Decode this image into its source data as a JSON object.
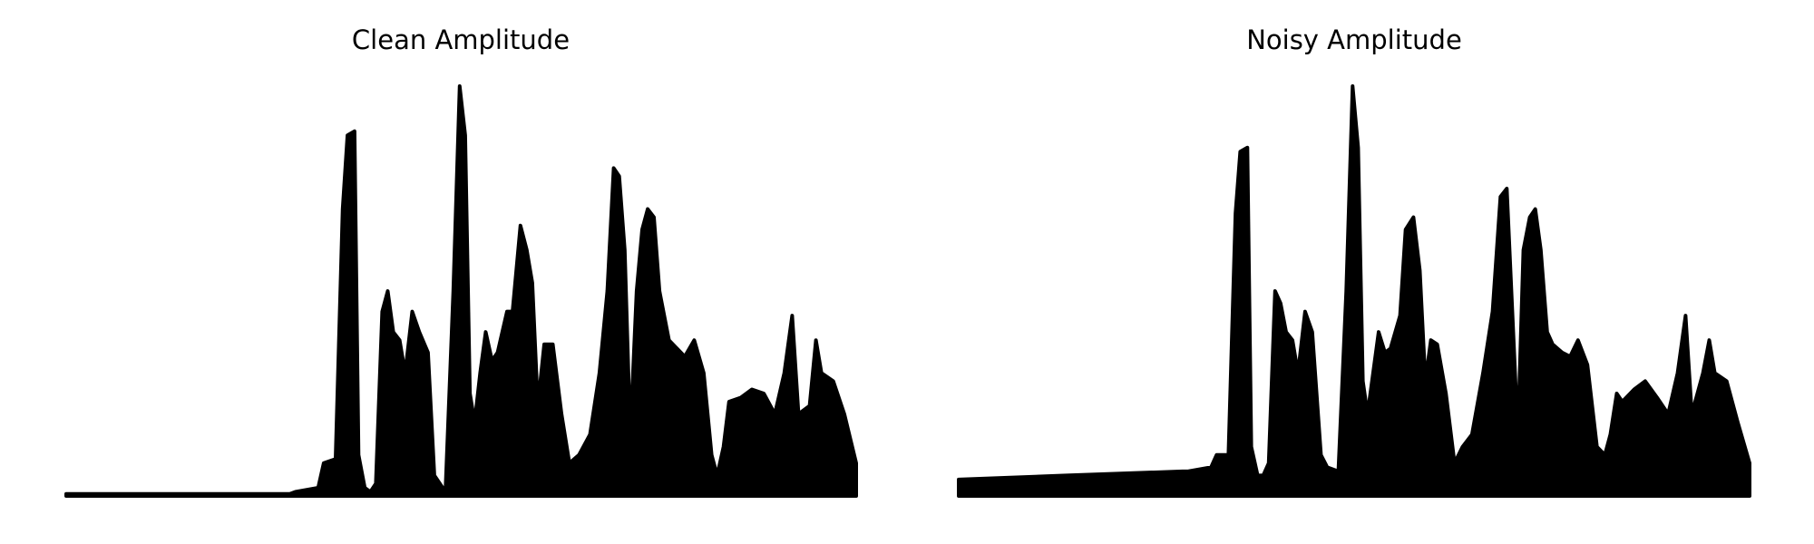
{
  "chart_data": [
    {
      "type": "area",
      "title": "Clean Amplitude",
      "color": "#000000",
      "x": [
        0,
        0.136,
        0.283,
        0.29,
        0.319,
        0.326,
        0.341,
        0.35,
        0.356,
        0.365,
        0.37,
        0.378,
        0.385,
        0.392,
        0.4,
        0.407,
        0.414,
        0.422,
        0.429,
        0.438,
        0.447,
        0.458,
        0.466,
        0.48,
        0.49,
        0.498,
        0.505,
        0.511,
        0.517,
        0.524,
        0.531,
        0.539,
        0.546,
        0.558,
        0.565,
        0.575,
        0.583,
        0.59,
        0.597,
        0.605,
        0.616,
        0.627,
        0.637,
        0.649,
        0.663,
        0.675,
        0.685,
        0.693,
        0.7,
        0.707,
        0.714,
        0.722,
        0.729,
        0.736,
        0.744,
        0.751,
        0.763,
        0.773,
        0.783,
        0.795,
        0.807,
        0.817,
        0.824,
        0.832,
        0.839,
        0.854,
        0.868,
        0.883,
        0.897,
        0.909,
        0.919,
        0.927,
        0.941,
        0.949,
        0.956,
        0.971,
        0.985,
        1
      ],
      "values": [
        0.005,
        0.005,
        0.005,
        0.01,
        0.02,
        0.08,
        0.09,
        0.7,
        0.88,
        0.89,
        0.1,
        0.02,
        0.01,
        0.03,
        0.45,
        0.5,
        0.4,
        0.38,
        0.3,
        0.45,
        0.4,
        0.35,
        0.05,
        0.01,
        0.5,
        1,
        0.88,
        0.25,
        0.18,
        0.3,
        0.4,
        0.33,
        0.35,
        0.45,
        0.45,
        0.66,
        0.6,
        0.52,
        0.22,
        0.37,
        0.37,
        0.2,
        0.08,
        0.1,
        0.15,
        0.3,
        0.5,
        0.8,
        0.78,
        0.6,
        0.15,
        0.5,
        0.65,
        0.7,
        0.68,
        0.5,
        0.38,
        0.36,
        0.34,
        0.38,
        0.3,
        0.1,
        0.05,
        0.12,
        0.23,
        0.24,
        0.26,
        0.25,
        0.2,
        0.3,
        0.44,
        0.2,
        0.22,
        0.38,
        0.3,
        0.28,
        0.2,
        0.08
      ]
    },
    {
      "type": "area",
      "title": "Noisy Amplitude",
      "color": "#000000",
      "x": [
        0,
        0.136,
        0.283,
        0.29,
        0.319,
        0.326,
        0.341,
        0.35,
        0.356,
        0.365,
        0.37,
        0.378,
        0.385,
        0.392,
        0.4,
        0.407,
        0.414,
        0.422,
        0.429,
        0.438,
        0.447,
        0.458,
        0.466,
        0.48,
        0.49,
        0.498,
        0.505,
        0.511,
        0.517,
        0.524,
        0.531,
        0.539,
        0.546,
        0.558,
        0.565,
        0.575,
        0.583,
        0.59,
        0.597,
        0.605,
        0.616,
        0.627,
        0.637,
        0.649,
        0.663,
        0.675,
        0.685,
        0.693,
        0.7,
        0.707,
        0.714,
        0.722,
        0.729,
        0.736,
        0.744,
        0.751,
        0.763,
        0.773,
        0.783,
        0.795,
        0.807,
        0.817,
        0.824,
        0.832,
        0.839,
        0.854,
        0.868,
        0.883,
        0.897,
        0.909,
        0.919,
        0.927,
        0.941,
        0.949,
        0.956,
        0.971,
        0.985,
        1
      ],
      "values": [
        0.04,
        0.05,
        0.06,
        0.06,
        0.07,
        0.1,
        0.1,
        0.69,
        0.84,
        0.85,
        0.12,
        0.05,
        0.05,
        0.08,
        0.5,
        0.47,
        0.4,
        0.38,
        0.3,
        0.45,
        0.4,
        0.1,
        0.07,
        0.06,
        0.5,
        1,
        0.85,
        0.28,
        0.2,
        0.3,
        0.4,
        0.35,
        0.36,
        0.44,
        0.65,
        0.68,
        0.55,
        0.28,
        0.38,
        0.37,
        0.25,
        0.08,
        0.12,
        0.15,
        0.3,
        0.45,
        0.73,
        0.75,
        0.45,
        0.15,
        0.6,
        0.68,
        0.7,
        0.6,
        0.4,
        0.37,
        0.35,
        0.34,
        0.38,
        0.32,
        0.12,
        0.1,
        0.15,
        0.25,
        0.23,
        0.26,
        0.28,
        0.24,
        0.2,
        0.3,
        0.44,
        0.2,
        0.3,
        0.38,
        0.3,
        0.28,
        0.18,
        0.08
      ]
    }
  ]
}
